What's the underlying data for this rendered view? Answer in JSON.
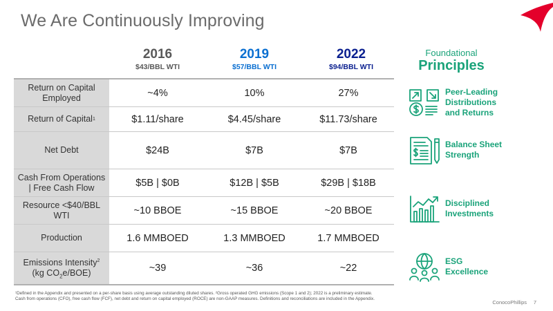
{
  "title": "We Are Continuously Improving",
  "colors": {
    "green": "#1aa37a",
    "blue": "#0a6fd1",
    "gray_head": "#595959",
    "label_bg": "#d9d9d9",
    "logo_red": "#e4002b"
  },
  "columns": [
    {
      "year": "2016",
      "price": "$43/BBL WTI",
      "color": "#595959"
    },
    {
      "year": "2019",
      "price": "$57/BBL WTI",
      "color": "#0a6fd1"
    },
    {
      "year": "2022",
      "price": "$94/BBL WTI",
      "color": "#0a1f8f"
    }
  ],
  "principles_header": {
    "sub": "Foundational",
    "main": "Principles"
  },
  "rows": [
    {
      "label": "Return on Capital Employed",
      "values": [
        "~4%",
        "10%",
        "27%"
      ]
    },
    {
      "label": "Return of Capital",
      "label_sup": "1",
      "values": [
        "$1.11/share",
        "$4.45/share",
        "$11.73/share"
      ]
    },
    {
      "label": "Net Debt",
      "values": [
        "$24B",
        "$7B",
        "$7B"
      ]
    },
    {
      "label": "Cash From Operations | Free Cash Flow",
      "values": [
        "$5B | $0B",
        "$12B | $5B",
        "$29B | $18B"
      ]
    },
    {
      "label": "Resource <$40/BBL WTI",
      "values": [
        "~10 BBOE",
        "~15 BBOE",
        "~20 BBOE"
      ]
    },
    {
      "label": "Production",
      "values": [
        "1.6 MMBOED",
        "1.3 MMBOED",
        "1.7 MMBOED"
      ]
    },
    {
      "label_line1": "Emissions Intensity",
      "label_sup": "2",
      "label_line2_a": "(kg CO",
      "label_sub": "2",
      "label_line2_b": "e/BOE)",
      "values": [
        "~39",
        "~36",
        "~22"
      ]
    }
  ],
  "principles": [
    {
      "icon": "distributions-icon",
      "line1": "Peer-Leading",
      "line2": "Distributions",
      "line3": "and Returns"
    },
    {
      "icon": "balance-sheet-icon",
      "line1": "Balance Sheet",
      "line2": "Strength"
    },
    {
      "icon": "growth-chart-icon",
      "line1": "Disciplined",
      "line2": "Investments"
    },
    {
      "icon": "esg-icon",
      "line1": "ESG",
      "line2": "Excellence"
    }
  ],
  "footnote": {
    "line1": "¹Defined in the Appendix and presented on a per-share basis using average outstanding diluted shares. ²Gross operated GHG emissions (Scope 1 and 2); 2022 is a preliminary estimate.",
    "line2": "Cash from operations (CFO), free cash flow (FCF), net debt and return on capital employed (ROCE) are non-GAAP measures. Definitions and reconciliations are included in the Appendix."
  },
  "footer": {
    "brand": "ConocoPhillips",
    "page": "7"
  }
}
